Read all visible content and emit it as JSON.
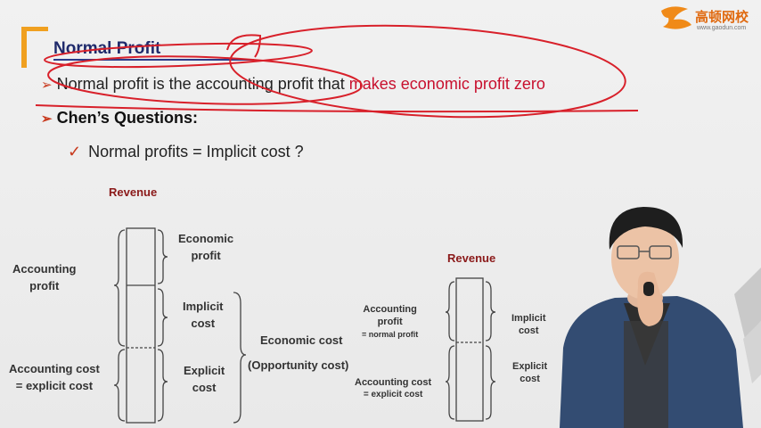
{
  "slide": {
    "title": "Normal Profit",
    "bullet1_prefix": "Normal profit is the accounting profit that ",
    "bullet1_highlight": "makes economic profit zero",
    "bullet2": "Chen’s Questions:",
    "sub_bullet": "Normal profits = Implicit cost ?"
  },
  "logo": {
    "brand": "高顿网校",
    "url": "www.gaodun.com"
  },
  "diagram_left": {
    "revenue": "Revenue",
    "economic_profit": [
      "Economic",
      "profit"
    ],
    "implicit_cost": [
      "Implicit",
      "cost"
    ],
    "explicit_cost": [
      "Explicit",
      "cost"
    ],
    "accounting_profit": [
      "Accounting",
      "profit"
    ],
    "accounting_cost": [
      "Accounting cost",
      "= explicit cost"
    ],
    "economic_cost": "Economic cost",
    "opportunity_cost": "(Opportunity cost)"
  },
  "diagram_right": {
    "revenue": "Revenue",
    "accounting_profit": [
      "Accounting",
      "profit",
      "= normal profit"
    ],
    "accounting_cost": [
      "Accounting cost",
      "= explicit cost"
    ],
    "implicit_cost": [
      "Implicit",
      "cost"
    ],
    "explicit_cost": [
      "Explicit",
      "cost"
    ]
  },
  "colors": {
    "title": "#1f2a6b",
    "highlight": "#c8102e",
    "annotation_pen": "#d8202a",
    "accent_bar": "#f0a020"
  }
}
